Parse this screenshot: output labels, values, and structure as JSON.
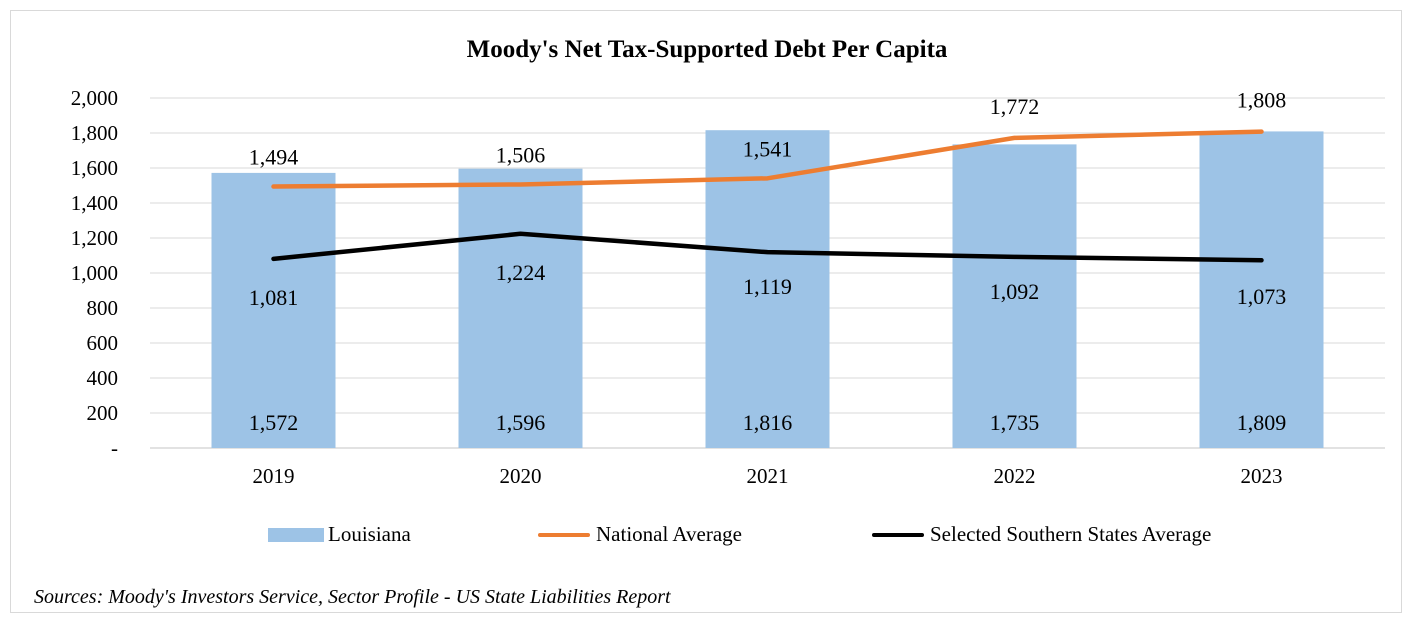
{
  "chart_data": {
    "type": "bar",
    "title": "Moody's Net Tax-Supported Debt Per Capita",
    "categories": [
      "2019",
      "2020",
      "2021",
      "2022",
      "2023"
    ],
    "ylim": [
      0,
      2000
    ],
    "yticks": [
      0,
      200,
      400,
      600,
      800,
      1000,
      1200,
      1400,
      1600,
      1800,
      2000
    ],
    "ytick_labels": [
      "-",
      "200",
      "400",
      "600",
      "800",
      "1,000",
      "1,200",
      "1,400",
      "1,600",
      "1,800",
      "2,000"
    ],
    "grid": true,
    "legend_position": "bottom",
    "series": [
      {
        "name": "Louisiana",
        "kind": "bar",
        "color": "#9dc3e6",
        "values": [
          1572,
          1596,
          1816,
          1735,
          1809
        ],
        "labels": [
          "1,572",
          "1,596",
          "1,816",
          "1,735",
          "1,809"
        ]
      },
      {
        "name": "National Average",
        "kind": "line",
        "color": "#ed7d31",
        "values": [
          1494,
          1506,
          1541,
          1772,
          1808
        ],
        "labels": [
          "1,494",
          "1,506",
          "1,541",
          "1,772",
          "1,808"
        ]
      },
      {
        "name": "Selected Southern States Average",
        "kind": "line",
        "color": "#000000",
        "values": [
          1081,
          1224,
          1119,
          1092,
          1073
        ],
        "labels": [
          "1,081",
          "1,224",
          "1,119",
          "1,092",
          "1,073"
        ]
      }
    ]
  },
  "source_note": "Sources: Moody's Investors Service, Sector Profile - US State Liabilities Report"
}
